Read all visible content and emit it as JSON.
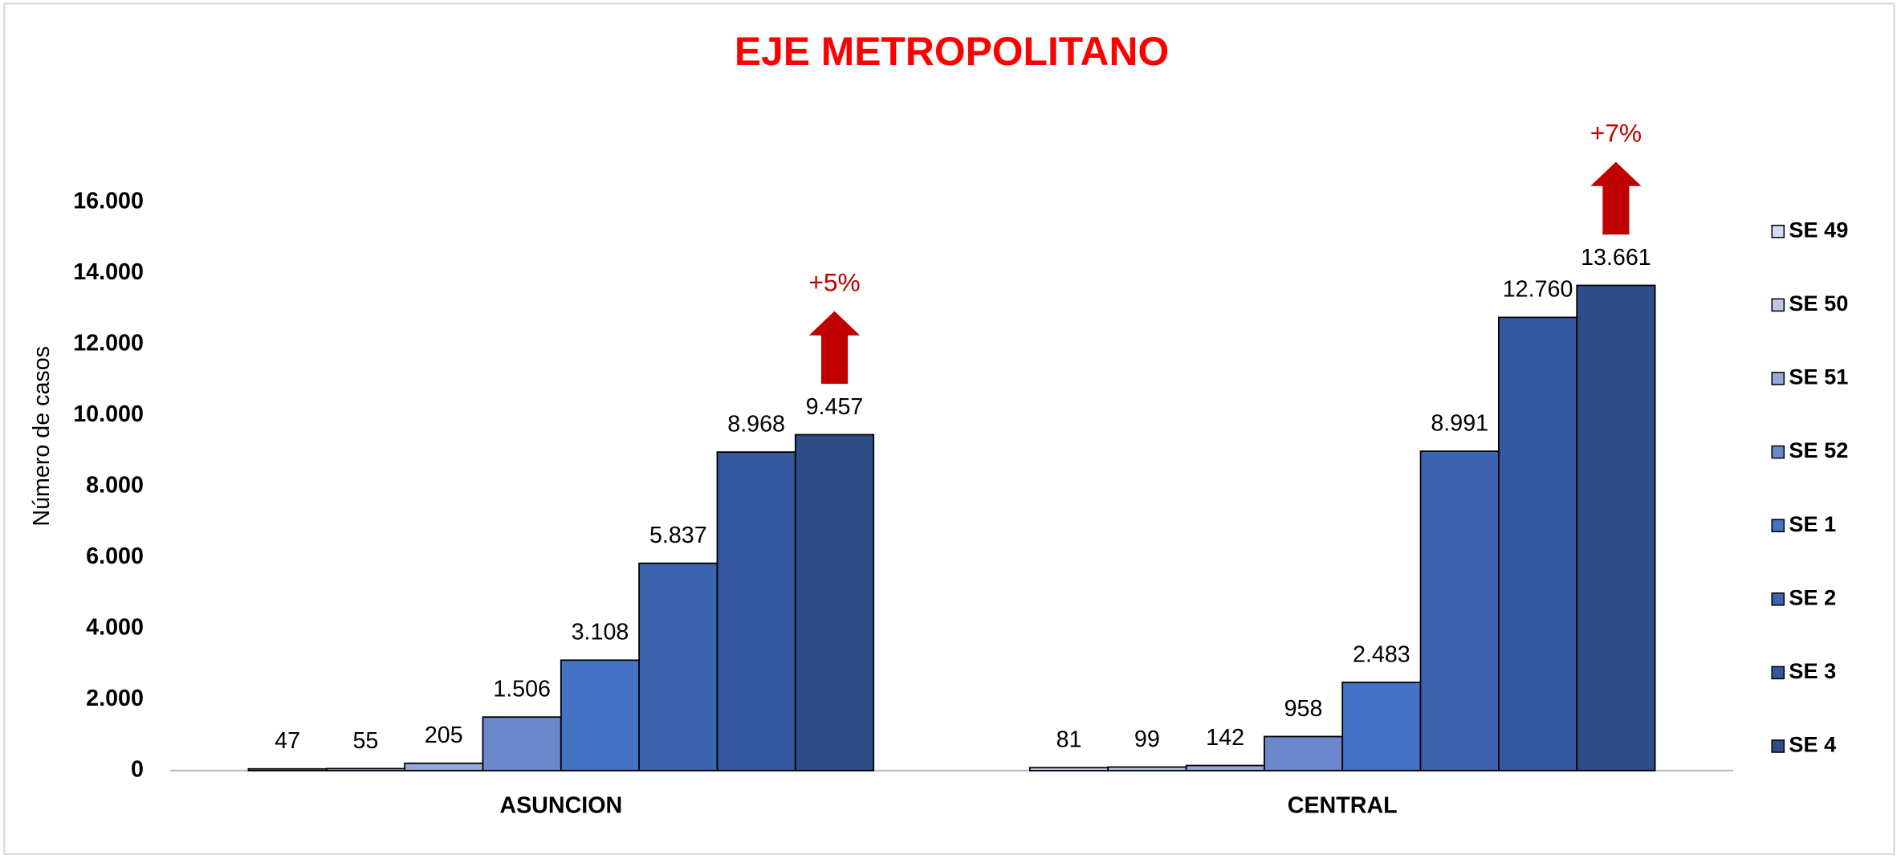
{
  "chart_data": {
    "type": "bar",
    "title": "EJE METROPOLITANO",
    "y_label": "Número de casos",
    "categories": [
      "ASUNCION",
      "CENTRAL"
    ],
    "series": [
      {
        "name": "SE 49",
        "color": "#d6dcef",
        "values": [
          47,
          81
        ]
      },
      {
        "name": "SE 50",
        "color": "#bcc7e8",
        "values": [
          55,
          99
        ]
      },
      {
        "name": "SE 51",
        "color": "#95a9db",
        "values": [
          205,
          142
        ]
      },
      {
        "name": "SE 52",
        "color": "#6b88cc",
        "values": [
          1506,
          958
        ],
        "value_labels": [
          "1.506",
          "958"
        ]
      },
      {
        "name": "SE 1",
        "color": "#4472c4",
        "values": [
          3108,
          2483
        ],
        "value_labels": [
          "3.108",
          "2.483"
        ]
      },
      {
        "name": "SE 2",
        "color": "#3c64ae",
        "values": [
          5837,
          8991
        ],
        "value_labels": [
          "5.837",
          "8.991"
        ]
      },
      {
        "name": "SE 3",
        "color": "#35579d",
        "values": [
          8968,
          12760
        ],
        "value_labels": [
          "8.968",
          "12.760"
        ]
      },
      {
        "name": "SE 4",
        "color": "#2e4d87",
        "values": [
          9457,
          13661
        ],
        "value_labels": [
          "9.457",
          "13.661"
        ]
      }
    ],
    "ylim": [
      0,
      16000
    ],
    "yticks": [
      0,
      {
        "value": 2000,
        "label": "2.000"
      },
      {
        "value": 4000,
        "label": "4.000"
      },
      {
        "value": 6000,
        "label": "6.000"
      },
      {
        "value": 8000,
        "label": "8.000"
      },
      {
        "value": 10000,
        "label": "10.000"
      },
      {
        "value": 12000,
        "label": "12.000"
      },
      {
        "value": 14000,
        "label": "14.000"
      },
      {
        "value": 16000,
        "label": "16.000"
      }
    ],
    "annotations": [
      "+5%",
      "+7%"
    ],
    "legend": "right"
  }
}
